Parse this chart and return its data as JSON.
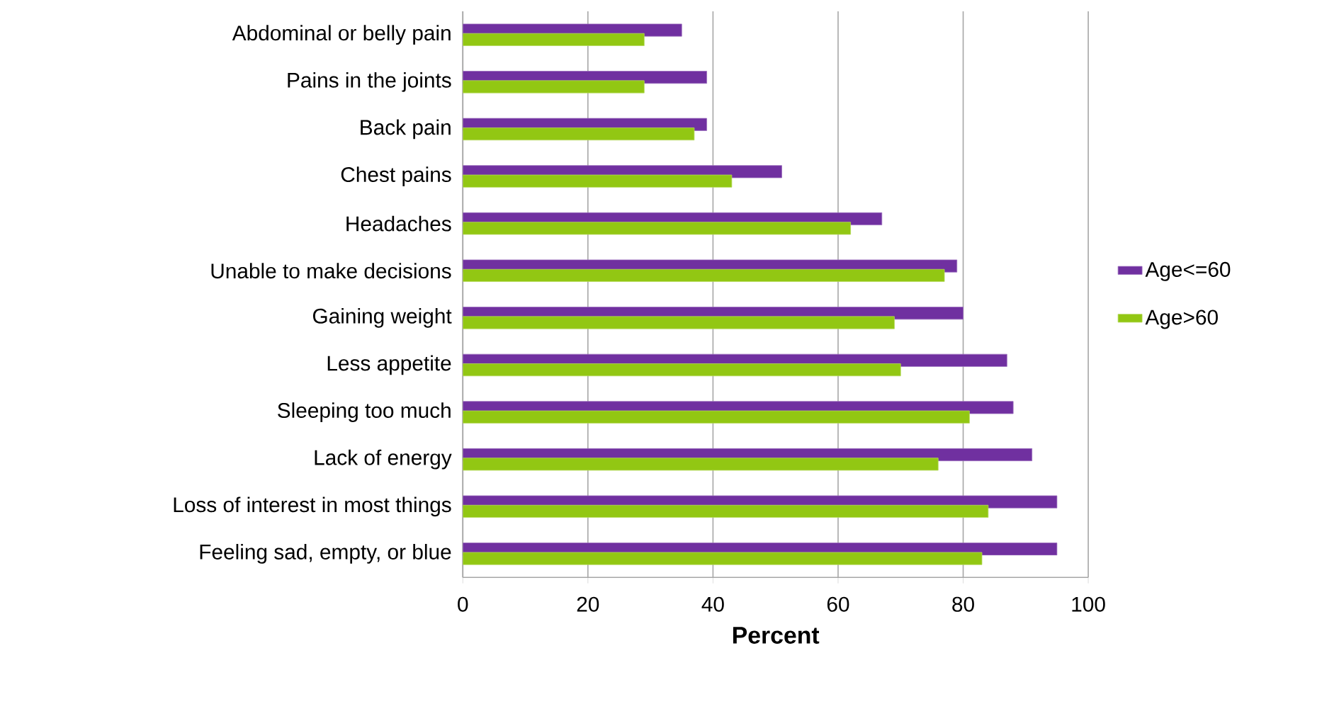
{
  "chart_data": {
    "type": "bar",
    "orientation": "horizontal",
    "xlabel": "Percent",
    "categories": [
      "Abdominal or belly pain",
      "Pains in the joints",
      "Back pain",
      "Chest pains",
      "Headaches",
      "Unable to make decisions",
      "Gaining weight",
      "Less appetite",
      "Sleeping too much",
      "Lack of energy",
      "Loss of interest in most things",
      "Feeling sad, empty, or blue"
    ],
    "series": [
      {
        "name": "Age<=60",
        "color": "#7030a0",
        "values": [
          35,
          39,
          39,
          51,
          67,
          79,
          80,
          87,
          88,
          91,
          95,
          95
        ]
      },
      {
        "name": "Age>60",
        "color": "#92c713",
        "values": [
          29,
          29,
          37,
          43,
          62,
          77,
          69,
          70,
          81,
          76,
          84,
          83
        ]
      }
    ],
    "xlim": [
      0,
      100
    ],
    "xticks": [
      0,
      20,
      40,
      60,
      80,
      100
    ],
    "grid": "x",
    "legend": "right"
  }
}
